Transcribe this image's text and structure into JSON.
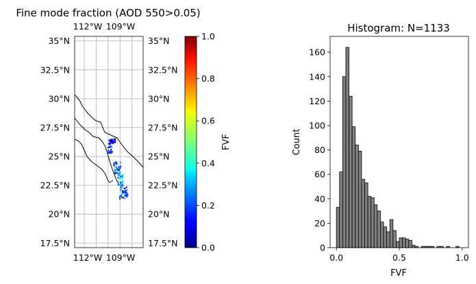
{
  "chart_data": [
    {
      "type": "map",
      "title": "Fine mode fraction (AOD 550>0.05)",
      "lon_ticks": [
        "112°W",
        "109°W"
      ],
      "lat_ticks": [
        "35°N",
        "32.5°N",
        "30°N",
        "27.5°N",
        "25°N",
        "22.5°N",
        "20°N",
        "17.5°N"
      ],
      "lat_values": [
        35,
        32.5,
        30,
        27.5,
        25,
        22.5,
        20,
        17.5
      ],
      "lon_range": [
        -114.2,
        -105.6
      ],
      "lat_range": [
        17.1,
        35.4
      ],
      "grid": true
    },
    {
      "type": "colorbar",
      "label": "FVF",
      "ticks": [
        "0.0",
        "0.2",
        "0.4",
        "0.6",
        "0.8",
        "1.0"
      ],
      "tick_values": [
        0.0,
        0.2,
        0.4,
        0.6,
        0.8,
        1.0
      ],
      "range": [
        0.0,
        1.0
      ],
      "colormap": "jet"
    },
    {
      "type": "bar",
      "title": "Histogram: N=1133",
      "xlabel": "FVF",
      "ylabel": "Count",
      "xlim": [
        -0.05,
        1.05
      ],
      "ylim": [
        0,
        173
      ],
      "bin_width": 0.025,
      "bin_starts": [
        0.0,
        0.025,
        0.05,
        0.075,
        0.1,
        0.125,
        0.15,
        0.175,
        0.2,
        0.225,
        0.25,
        0.275,
        0.3,
        0.325,
        0.35,
        0.375,
        0.4,
        0.425,
        0.45,
        0.475,
        0.5,
        0.525,
        0.55,
        0.575,
        0.6,
        0.625,
        0.65,
        0.675,
        0.7,
        0.725,
        0.75,
        0.775,
        0.8,
        0.825,
        0.85,
        0.875,
        0.9,
        0.925,
        0.95
      ],
      "values": [
        33,
        62,
        140,
        164,
        124,
        99,
        84,
        79,
        56,
        53,
        42,
        41,
        35,
        30,
        21,
        17,
        13,
        23,
        14,
        5,
        8,
        8,
        7,
        6,
        2,
        1,
        0,
        1,
        1,
        1,
        1,
        0,
        1,
        1,
        0,
        1,
        0,
        0,
        1
      ],
      "x_ticks": [
        "0.0",
        "0.5",
        "1.0"
      ],
      "x_tick_values": [
        0.0,
        0.5,
        1.0
      ],
      "y_ticks": [
        "0",
        "20",
        "40",
        "60",
        "80",
        "100",
        "120",
        "140",
        "160"
      ],
      "y_tick_values": [
        0,
        20,
        40,
        60,
        80,
        100,
        120,
        140,
        160
      ],
      "bar_color": "#808080",
      "edge_color": "#000000"
    }
  ]
}
